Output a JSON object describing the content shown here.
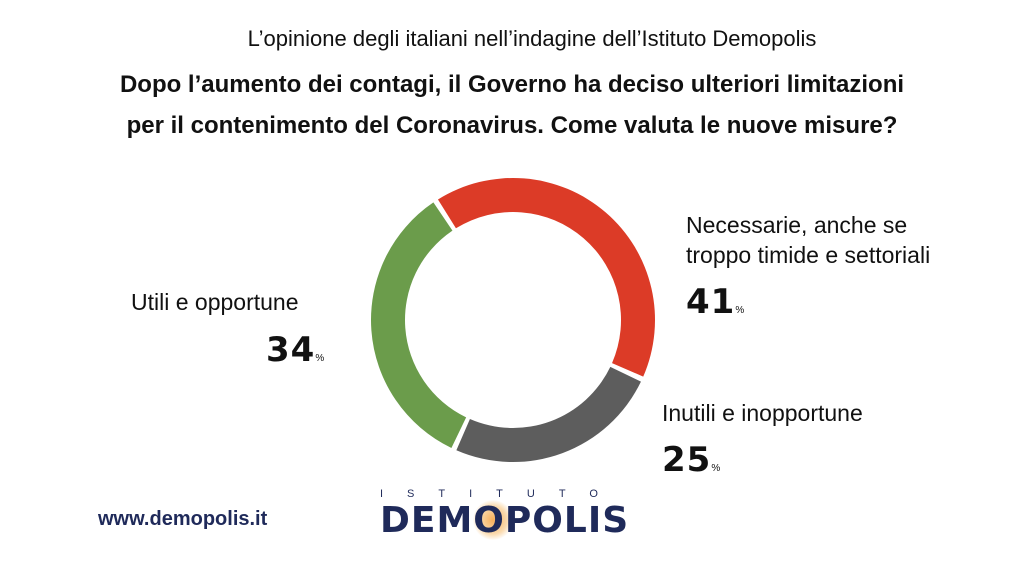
{
  "header": {
    "subtitle": "L’opinione degli italiani nell’indagine dell’Istituto Demopolis",
    "title_line1": "Dopo l’aumento dei contagi, il Governo ha deciso ulteriori limitazioni",
    "title_line2": "per il contenimento del Coronavirus. Come valuta le nuove misure?"
  },
  "chart_data": {
    "type": "pie",
    "variant": "donut",
    "categories": [
      "Necessarie, anche se troppo timide e settoriali",
      "Inutili e inopportune",
      "Utili e opportune"
    ],
    "values": [
      41,
      25,
      34
    ],
    "unit": "%",
    "colors": [
      "#dc3b27",
      "#5d5d5d",
      "#6b9c4b"
    ],
    "labels": {
      "necessarie_line1": "Necessarie, anche se",
      "necessarie_line2": "troppo timide e settoriali",
      "necessarie_value": "41",
      "inutili": "Inutili e inopportune",
      "inutili_value": "25",
      "utili": "Utili e opportune",
      "utili_value": "34",
      "pct": "%"
    }
  },
  "footer": {
    "website": "www.demopolis.it",
    "logo_top": "ISTITUTO",
    "logo_main": "DEMOPOLIS"
  }
}
